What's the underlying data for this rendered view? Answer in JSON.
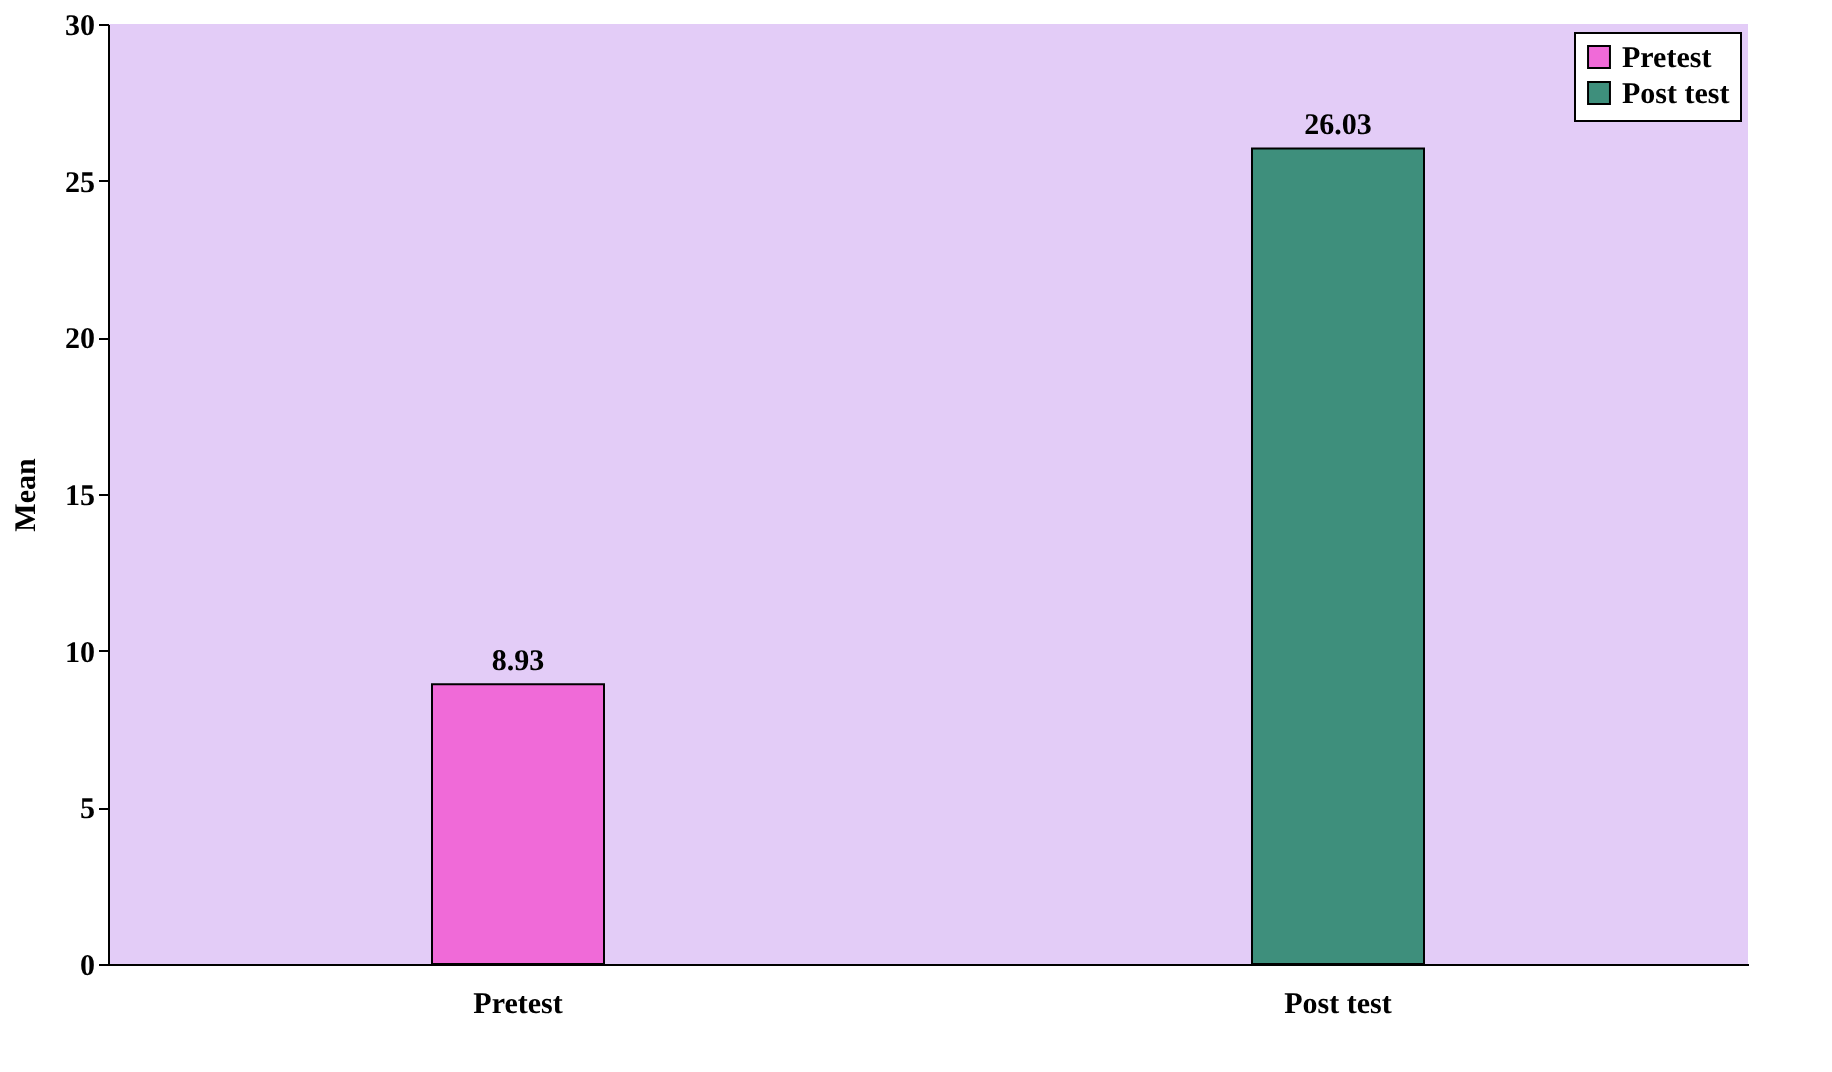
{
  "chart_data": {
    "type": "bar",
    "ylabel": "Mean",
    "categories": [
      "Pretest",
      "Post test"
    ],
    "series": [
      {
        "name": "Pretest",
        "color": "#f06ad8",
        "values": [
          8.93,
          null
        ]
      },
      {
        "name": "Post test",
        "color": "#3e8f7c",
        "values": [
          null,
          26.03
        ]
      }
    ],
    "ylim": [
      0,
      30
    ],
    "yticks": [
      0,
      5,
      10,
      15,
      20,
      25,
      30
    ],
    "grid": false,
    "legend": "top right",
    "data_labels": true
  }
}
